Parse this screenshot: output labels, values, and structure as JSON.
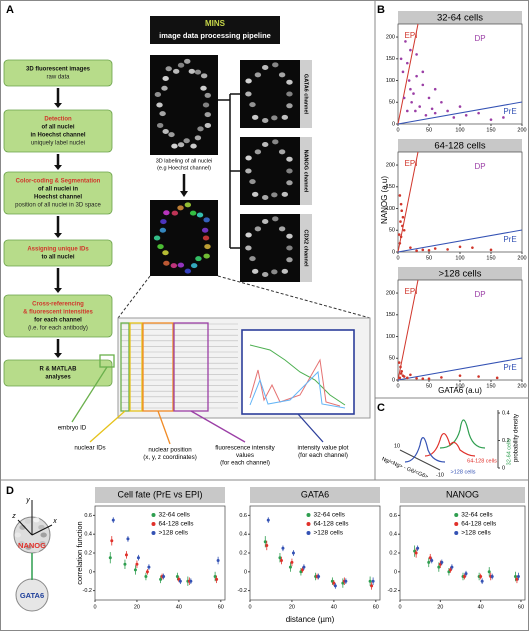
{
  "panel_a": {
    "label": "A",
    "title": [
      "MINS",
      "image data processing pipeline"
    ],
    "steps": [
      {
        "head": [],
        "text": [
          "3D fluorescent images"
        ],
        "sub": [
          "raw data"
        ]
      },
      {
        "head": [
          "Detection"
        ],
        "text": [
          "of all nuclei",
          "in Hoechst channel"
        ],
        "sub": [
          "uniquely label nuclei"
        ]
      },
      {
        "head": [
          "Color-coding & Segmentation"
        ],
        "text": [
          "of all nuclei in",
          "Hoechst channel"
        ],
        "sub": [
          "position of all nuclei in 3D space"
        ]
      },
      {
        "head": [
          "Assigning unique IDs"
        ],
        "text": [
          "to all nuclei"
        ],
        "sub": []
      },
      {
        "head": [
          "Cross-referencing",
          "& fluorescent intensities"
        ],
        "text": [
          "for each channel"
        ],
        "sub": [
          "(i.e. for each antibody)"
        ]
      },
      {
        "head": [],
        "text": [
          "R & MATLAB",
          "analyses"
        ],
        "sub": []
      }
    ],
    "image_caption": [
      "3D labeling of all nuclei",
      "(e.g Hoechst channel)"
    ],
    "channels": [
      "GATA6 channel",
      "NANOG channel",
      "CDX2 channel"
    ],
    "callouts": [
      {
        "lines": [
          "embryo ID"
        ]
      },
      {
        "lines": [
          "nuclear IDs"
        ]
      },
      {
        "lines": [
          "nuclear position",
          "(x, y, z coordinates)"
        ]
      },
      {
        "lines": [
          "fluorescence intensity",
          "values",
          "(for each channel)"
        ]
      },
      {
        "lines": [
          "intensity value plot",
          "(for each channel)"
        ]
      }
    ]
  },
  "panel_b": {
    "label": "B",
    "type": "scatter",
    "y_label": "NANOG (a.u)",
    "x_label": "GATA6 (a.u)",
    "xlim": [
      0,
      200
    ],
    "ylim": [
      0,
      230
    ],
    "xticks": [
      0,
      50,
      100,
      150,
      200
    ],
    "yticks": [
      0,
      50,
      100,
      150,
      200
    ],
    "plots": [
      {
        "title": "32-64 cells",
        "regions": [
          "EPI",
          "DP",
          "PrE"
        ],
        "color": "#9b3fa6",
        "x": [
          5,
          8,
          10,
          12,
          15,
          18,
          20,
          22,
          25,
          28,
          30,
          35,
          40,
          45,
          50,
          55,
          60,
          70,
          80,
          90,
          100,
          110,
          130,
          150,
          170,
          20,
          30,
          15,
          60,
          40
        ],
        "y": [
          150,
          120,
          60,
          190,
          140,
          100,
          80,
          50,
          70,
          30,
          110,
          40,
          90,
          20,
          60,
          35,
          25,
          50,
          30,
          15,
          40,
          20,
          25,
          10,
          15,
          170,
          160,
          30,
          80,
          120
        ]
      },
      {
        "title": "64-128 cells",
        "regions": [
          "EPI",
          "DP",
          "PrE"
        ],
        "color": "#d0362b",
        "x": [
          3,
          5,
          6,
          8,
          4,
          7,
          10,
          2,
          5,
          3,
          20,
          40,
          60,
          80,
          100,
          120,
          30,
          150,
          50
        ],
        "y": [
          130,
          110,
          95,
          80,
          70,
          60,
          50,
          40,
          35,
          20,
          10,
          5,
          8,
          6,
          12,
          10,
          3,
          5,
          4
        ]
      },
      {
        "title": ">128 cells",
        "regions": [
          "EPI",
          "DP",
          "PrE"
        ],
        "color": "#d0362b",
        "x": [
          2,
          4,
          6,
          8,
          3,
          5,
          10,
          15,
          30,
          50,
          70,
          100,
          130,
          160,
          40,
          20
        ],
        "y": [
          40,
          30,
          20,
          10,
          5,
          15,
          8,
          5,
          4,
          3,
          6,
          10,
          8,
          5,
          3,
          12
        ]
      }
    ]
  },
  "panel_c": {
    "label": "C",
    "z_label": "probability density",
    "zticks": [
      0,
      0.2,
      0.4
    ],
    "x_label": "Ng/<Ng> - G6/<G6>",
    "xticks": [
      10,
      -10
    ],
    "series_labels": [
      "32-64 cells",
      "64-128 cells",
      ">128 cells"
    ]
  },
  "panel_d": {
    "label": "D",
    "type": "errorbar",
    "schematic": {
      "axes": [
        "y",
        "x",
        "z"
      ],
      "stains": [
        "NANOG",
        "GATA6"
      ]
    },
    "y_label": "correlation function",
    "x_label": "distance (µm)",
    "xlim": [
      0,
      62
    ],
    "ylim": [
      -0.3,
      0.7
    ],
    "xticks": [
      0,
      20,
      40,
      60
    ],
    "yticks": [
      -0.2,
      0,
      0.2,
      0.4,
      0.6
    ],
    "x": [
      8,
      15,
      20,
      25,
      32,
      40,
      45,
      58
    ],
    "charts": [
      {
        "title": "Cell fate (PrE vs EPI)",
        "series": [
          {
            "name": "32-64 cells",
            "color": "#2e9e4f",
            "values": [
              0.15,
              0.08,
              0.02,
              -0.05,
              -0.08,
              -0.05,
              -0.1,
              -0.05
            ],
            "errors": [
              0.06,
              0.05,
              0.05,
              0.04,
              0.04,
              0.04,
              0.05,
              0.05
            ]
          },
          {
            "name": "64-128 cells",
            "color": "#e0302a",
            "values": [
              0.33,
              0.18,
              0.08,
              0.0,
              -0.05,
              -0.08,
              -0.1,
              -0.08
            ],
            "errors": [
              0.05,
              0.04,
              0.04,
              0.03,
              0.03,
              0.03,
              0.04,
              0.04
            ]
          },
          {
            "name": ">128 cells",
            "color": "#3452b4",
            "values": [
              0.55,
              0.35,
              0.15,
              0.05,
              -0.05,
              -0.1,
              -0.1,
              0.12
            ],
            "errors": [
              0.03,
              0.03,
              0.03,
              0.03,
              0.03,
              0.03,
              0.03,
              0.04
            ]
          }
        ]
      },
      {
        "title": "GATA6",
        "series": [
          {
            "name": "32-64 cells",
            "color": "#2e9e4f",
            "values": [
              0.32,
              0.15,
              0.05,
              0.0,
              -0.05,
              -0.1,
              -0.12,
              -0.1
            ],
            "errors": [
              0.06,
              0.05,
              0.05,
              0.04,
              0.04,
              0.04,
              0.05,
              0.05
            ]
          },
          {
            "name": "64-128 cells",
            "color": "#e0302a",
            "values": [
              0.28,
              0.12,
              0.1,
              0.02,
              -0.05,
              -0.12,
              -0.1,
              -0.15
            ],
            "errors": [
              0.05,
              0.04,
              0.04,
              0.03,
              0.03,
              0.03,
              0.04,
              0.04
            ]
          },
          {
            "name": ">128 cells",
            "color": "#3452b4",
            "values": [
              0.55,
              0.25,
              0.2,
              0.05,
              -0.05,
              -0.15,
              -0.1,
              -0.1
            ],
            "errors": [
              0.03,
              0.03,
              0.03,
              0.03,
              0.03,
              0.03,
              0.03,
              0.04
            ]
          }
        ]
      },
      {
        "title": "NANOG",
        "series": [
          {
            "name": "32-64 cells",
            "color": "#2e9e4f",
            "values": [
              0.22,
              0.1,
              0.05,
              0.0,
              -0.05,
              -0.05,
              0.0,
              -0.05
            ],
            "errors": [
              0.06,
              0.05,
              0.05,
              0.04,
              0.04,
              0.04,
              0.05,
              0.05
            ]
          },
          {
            "name": "64-128 cells",
            "color": "#e0302a",
            "values": [
              0.2,
              0.15,
              0.08,
              0.02,
              -0.05,
              -0.05,
              -0.05,
              -0.08
            ],
            "errors": [
              0.05,
              0.04,
              0.04,
              0.03,
              0.03,
              0.03,
              0.04,
              0.04
            ]
          },
          {
            "name": ">128 cells",
            "color": "#3452b4",
            "values": [
              0.25,
              0.12,
              0.1,
              0.05,
              -0.02,
              -0.1,
              -0.05,
              -0.05
            ],
            "errors": [
              0.03,
              0.03,
              0.03,
              0.03,
              0.03,
              0.03,
              0.03,
              0.04
            ]
          }
        ]
      }
    ]
  }
}
